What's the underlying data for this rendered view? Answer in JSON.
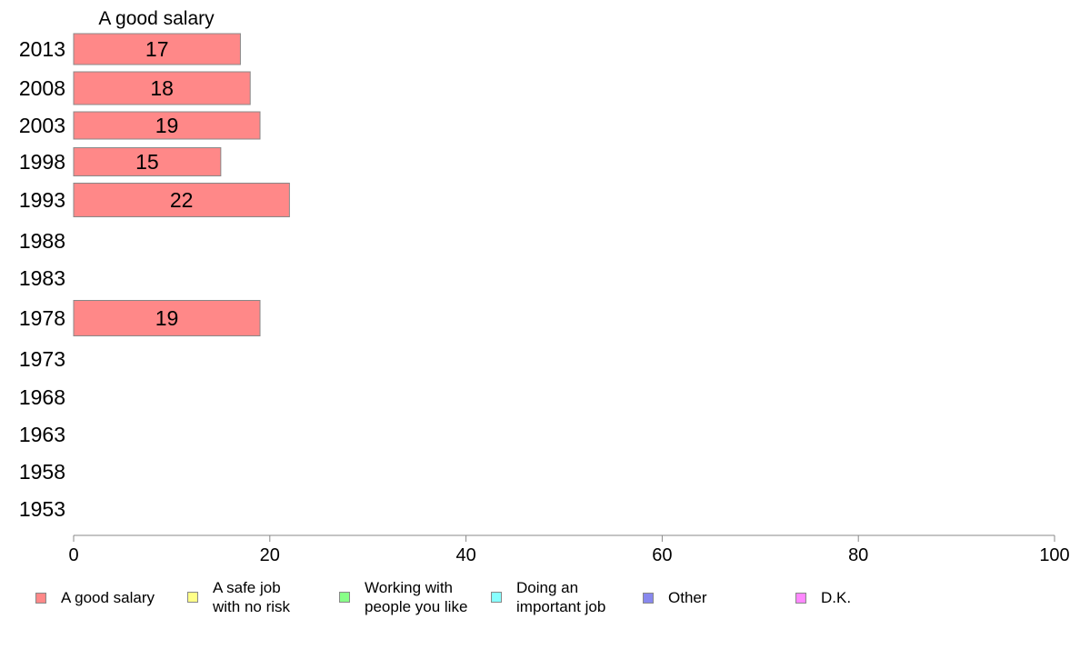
{
  "chart_data": {
    "type": "bar",
    "orientation": "horizontal",
    "title": "A good salary",
    "categories": [
      "2013",
      "2008",
      "2003",
      "1998",
      "1993",
      "1988",
      "1983",
      "1978",
      "1973",
      "1968",
      "1963",
      "1958",
      "1953"
    ],
    "series": [
      {
        "name": "A good salary",
        "color": "#ff8888",
        "values": [
          17,
          18,
          19,
          15,
          22,
          null,
          null,
          19,
          null,
          null,
          null,
          null,
          null
        ]
      }
    ],
    "data_labels": [
      "17",
      "18",
      "19",
      "15",
      "22",
      "",
      "",
      "19",
      "",
      "",
      "",
      "",
      ""
    ],
    "xlim": [
      0,
      100
    ],
    "xticks": [
      "0",
      "20",
      "40",
      "60",
      "80",
      "100"
    ],
    "grid": false,
    "legend_position": "bottom",
    "legend": [
      {
        "label": "A good salary",
        "color": "#ff8888"
      },
      {
        "label": "A safe job\nwith no risk",
        "color": "#ffff88"
      },
      {
        "label": "Working with\npeople you like",
        "color": "#88ff88"
      },
      {
        "label": "Doing an\nimportant job",
        "color": "#88ffff"
      },
      {
        "label": "Other",
        "color": "#8888ee"
      },
      {
        "label": "D.K.",
        "color": "#ff88ff"
      }
    ]
  }
}
